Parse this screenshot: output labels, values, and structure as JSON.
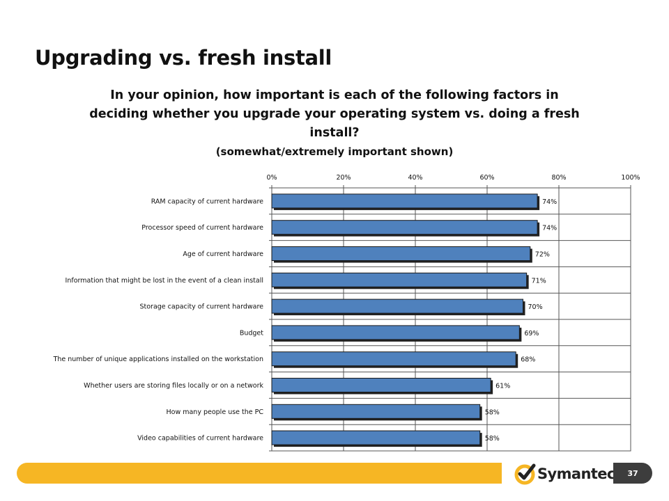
{
  "slide": {
    "title": "Upgrading vs. fresh install",
    "question": "In your opinion, how important is each of the following factors in deciding whether you upgrade your operating system vs. doing a fresh install?",
    "subtitle": "(somewhat/extremely important shown)",
    "brand": "Symantec",
    "brand_mark": ".",
    "page_number": "37"
  },
  "colors": {
    "bar_fill": "#4f81bd",
    "footer_bar": "#f6b624",
    "logo_check": "#f6b624",
    "page_badge": "#3d3d3d"
  },
  "chart_data": {
    "type": "bar",
    "orientation": "horizontal",
    "title": "",
    "xlabel": "",
    "ylabel": "",
    "xlim": [
      0,
      100
    ],
    "tick_labels": [
      "0%",
      "20%",
      "40%",
      "60%",
      "80%",
      "100%"
    ],
    "gridlines": true,
    "legend": "none",
    "categories": [
      "RAM capacity of current hardware",
      "Processor speed of current hardware",
      "Age of current hardware",
      "Information that might be lost in the event of a clean install",
      "Storage capacity of current hardware",
      "Budget",
      "The number of unique applications installed on the workstation",
      "Whether users are storing files locally or on a network",
      "How many people use the PC",
      "Video capabilities of current hardware"
    ],
    "values": [
      74,
      74,
      72,
      71,
      70,
      69,
      68,
      61,
      58,
      58
    ],
    "data_labels": [
      "74%",
      "74%",
      "72%",
      "71%",
      "70%",
      "69%",
      "68%",
      "61%",
      "58%",
      "58%"
    ]
  }
}
